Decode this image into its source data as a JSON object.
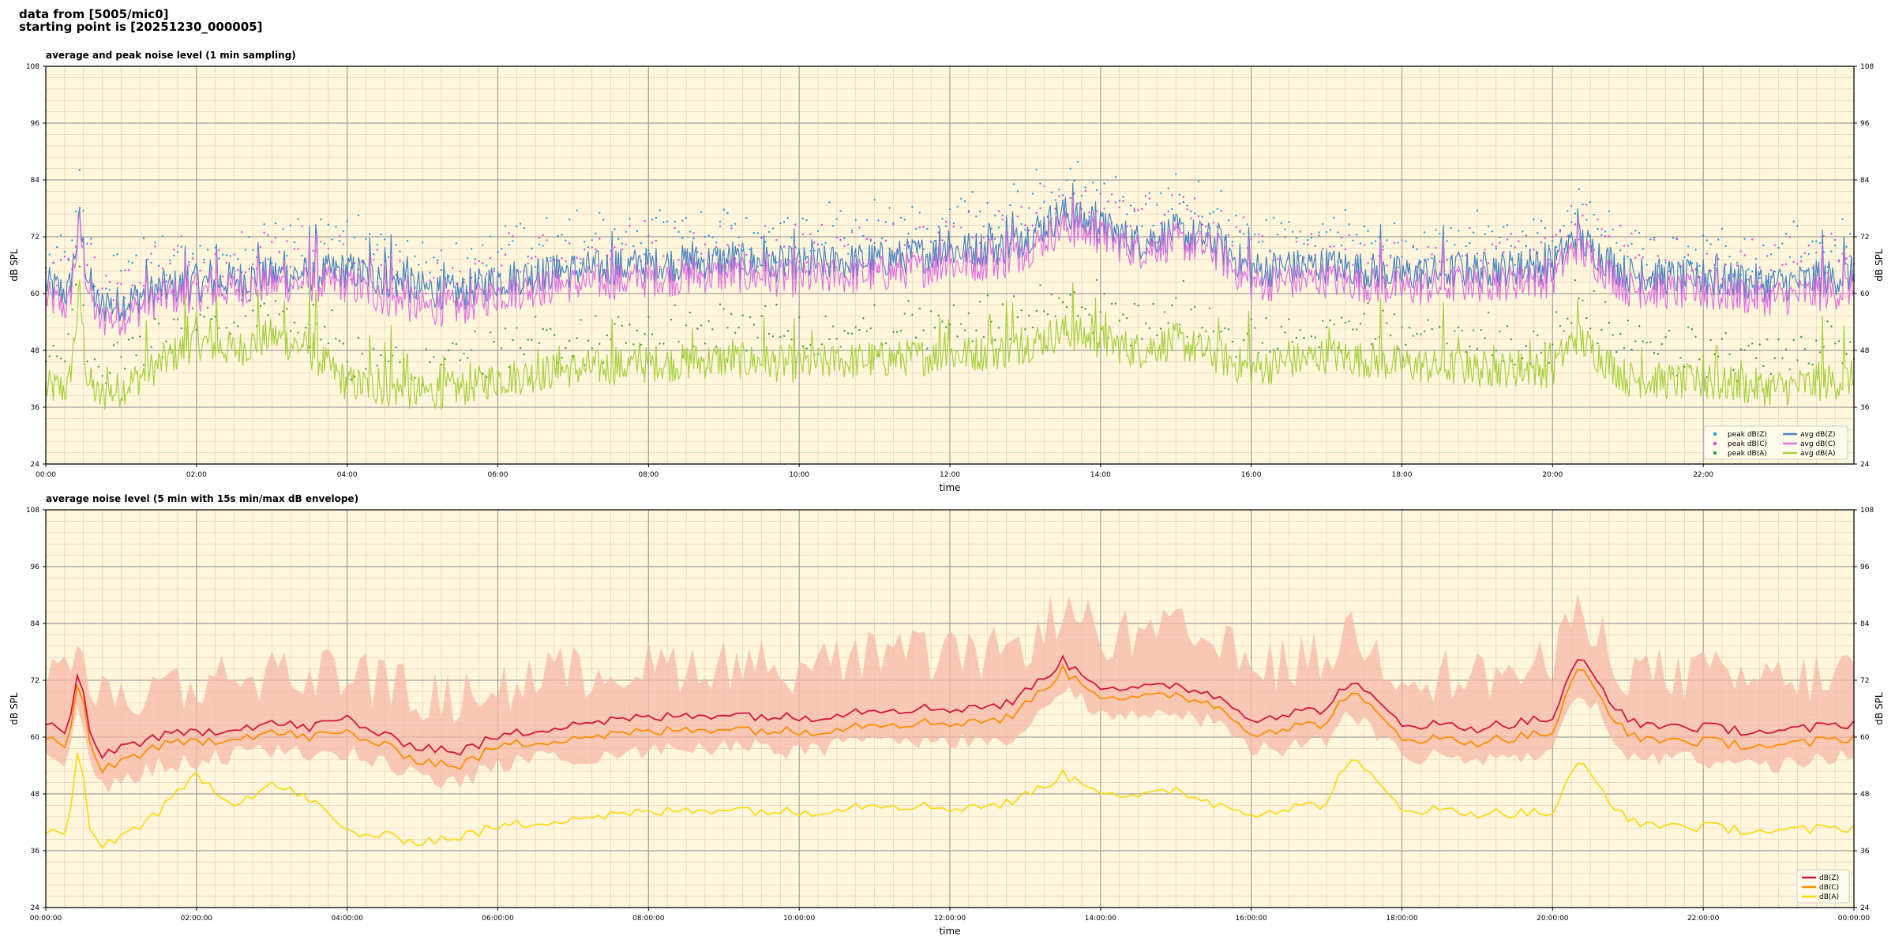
{
  "header": {
    "line1": "data from [5005/mic0]",
    "line2": "starting point is [20251230_000005]"
  },
  "colors": {
    "plot_bg": "#fff6dc",
    "grid_major": "#a0a0a0",
    "grid_minor": "#d8d2c0",
    "peak_z": "#1f9ae0",
    "peak_c": "#e040e0",
    "peak_a": "#3c9a3c",
    "avg_z": "#4a84c0",
    "avg_c": "#e070e0",
    "avg_a": "#a8d040",
    "line_z": "#d4143c",
    "line_c": "#ff8c00",
    "line_a": "#ffd700",
    "envelope": "#f5b8a8"
  },
  "chart_data": [
    {
      "type": "line",
      "title": "average and peak noise level (1 min sampling)",
      "xlabel": "time",
      "ylabel": "dB SPL",
      "ylabel_right": "dB SPL",
      "ylim": [
        24,
        108
      ],
      "yticks": [
        "24",
        "36",
        "48",
        "60",
        "72",
        "84",
        "96",
        "108"
      ],
      "xlim_hours": [
        0,
        24
      ],
      "xticks": [
        "00:00",
        "02:00",
        "04:00",
        "06:00",
        "08:00",
        "10:00",
        "12:00",
        "14:00",
        "16:00",
        "18:00",
        "20:00",
        "22:00"
      ],
      "grid": true,
      "legend_position": "lower-right",
      "legend": [
        {
          "label": "peak dB(Z)",
          "kind": "dot",
          "color": "#1f9ae0"
        },
        {
          "label": "peak dB(C)",
          "kind": "dot",
          "color": "#e040e0"
        },
        {
          "label": "peak dB(A)",
          "kind": "dot",
          "color": "#3c9a3c"
        },
        {
          "label": "avg dB(Z)",
          "kind": "line",
          "color": "#4a84c0"
        },
        {
          "label": "avg dB(C)",
          "kind": "line",
          "color": "#e070e0"
        },
        {
          "label": "avg dB(A)",
          "kind": "line",
          "color": "#a8d040"
        }
      ],
      "series_profile": {
        "x_hours": [
          0,
          0.3,
          0.45,
          0.55,
          0.7,
          1.0,
          1.5,
          2.0,
          2.5,
          3.0,
          3.5,
          4.0,
          4.5,
          5.0,
          5.5,
          6.0,
          7.0,
          8.0,
          9.0,
          10.0,
          11.0,
          12.0,
          12.8,
          13.5,
          14.0,
          14.5,
          15.0,
          15.5,
          16.0,
          17.0,
          18.0,
          19.0,
          20.0,
          20.3,
          21.0,
          22.0,
          23.0,
          24.0
        ],
        "avg_z": [
          62,
          60,
          75,
          64,
          57,
          58,
          61,
          62,
          63,
          64,
          64,
          65,
          63,
          61,
          60,
          63,
          65,
          66,
          67,
          66,
          67,
          69,
          70,
          77,
          74,
          71,
          73,
          71,
          65,
          66,
          64,
          65,
          66,
          72,
          64,
          63,
          62,
          64
        ],
        "avg_c": [
          59,
          57,
          74,
          62,
          54,
          55,
          59,
          60,
          61,
          62,
          62,
          62,
          59,
          57,
          57,
          60,
          62,
          63,
          64,
          63,
          64,
          66,
          67,
          74,
          72,
          69,
          71,
          69,
          62,
          63,
          61,
          62,
          63,
          70,
          61,
          60,
          59,
          61
        ],
        "avg_a": [
          40,
          40,
          60,
          42,
          38,
          40,
          45,
          50,
          48,
          51,
          48,
          41,
          40,
          39,
          40,
          42,
          44,
          45,
          46,
          45,
          46,
          47,
          48,
          52,
          50,
          48,
          50,
          47,
          44,
          47,
          45,
          44,
          44,
          51,
          42,
          41,
          40,
          42
        ],
        "peak_offset_db": 8,
        "avg_jitter_db": 4
      }
    },
    {
      "type": "area",
      "title": "average noise level (5 min with 15s min/max dB envelope)",
      "xlabel": "time",
      "ylabel": "dB SPL",
      "ylabel_right": "dB SPL",
      "ylim": [
        24,
        108
      ],
      "yticks": [
        "24",
        "36",
        "48",
        "60",
        "72",
        "84",
        "96",
        "108"
      ],
      "xlim_hours": [
        0,
        24
      ],
      "xticks": [
        "00:00:00",
        "02:00:00",
        "04:00:00",
        "06:00:00",
        "08:00:00",
        "10:00:00",
        "12:00:00",
        "14:00:00",
        "16:00:00",
        "18:00:00",
        "20:00:00",
        "22:00:00",
        "00:00:00"
      ],
      "grid": true,
      "legend_position": "lower-right",
      "legend": [
        {
          "label": "dB(Z)",
          "kind": "line",
          "color": "#d4143c"
        },
        {
          "label": "dB(C)",
          "kind": "line",
          "color": "#ff8c00"
        },
        {
          "label": "dB(A)",
          "kind": "line",
          "color": "#ffd700"
        }
      ],
      "series_profile": {
        "x_hours": [
          0,
          0.3,
          0.45,
          0.55,
          0.7,
          1.0,
          1.5,
          2.0,
          2.5,
          3.0,
          3.5,
          4.0,
          4.5,
          5.0,
          5.5,
          6.0,
          7.0,
          8.0,
          9.0,
          10.0,
          11.0,
          12.0,
          12.8,
          13.5,
          14.0,
          14.5,
          15.0,
          15.5,
          16.0,
          17.0,
          17.3,
          18.0,
          19.0,
          20.0,
          20.35,
          21.0,
          22.0,
          23.0,
          24.0
        ],
        "z": [
          63,
          61,
          75,
          63,
          56,
          58,
          60,
          61,
          62,
          63,
          62,
          64,
          60,
          58,
          57,
          60,
          63,
          64,
          65,
          64,
          66,
          66,
          67,
          76,
          71,
          70,
          71,
          69,
          64,
          66,
          72,
          63,
          62,
          64,
          77,
          63,
          62,
          61,
          63
        ],
        "c": [
          60,
          58,
          73,
          61,
          53,
          55,
          58,
          59,
          60,
          61,
          60,
          61,
          58,
          55,
          54,
          58,
          60,
          61,
          62,
          61,
          63,
          63,
          64,
          74,
          69,
          68,
          69,
          67,
          61,
          63,
          70,
          60,
          59,
          61,
          75,
          60,
          59,
          58,
          60
        ],
        "a": [
          40,
          40,
          60,
          42,
          37,
          39,
          44,
          52,
          46,
          50,
          47,
          40,
          39,
          38,
          39,
          41,
          43,
          44,
          45,
          44,
          46,
          45,
          46,
          52,
          49,
          47,
          49,
          46,
          44,
          46,
          56,
          45,
          44,
          44,
          55,
          42,
          41,
          40,
          41
        ],
        "envelope_low_db": 4,
        "envelope_high_db": 12
      }
    }
  ]
}
